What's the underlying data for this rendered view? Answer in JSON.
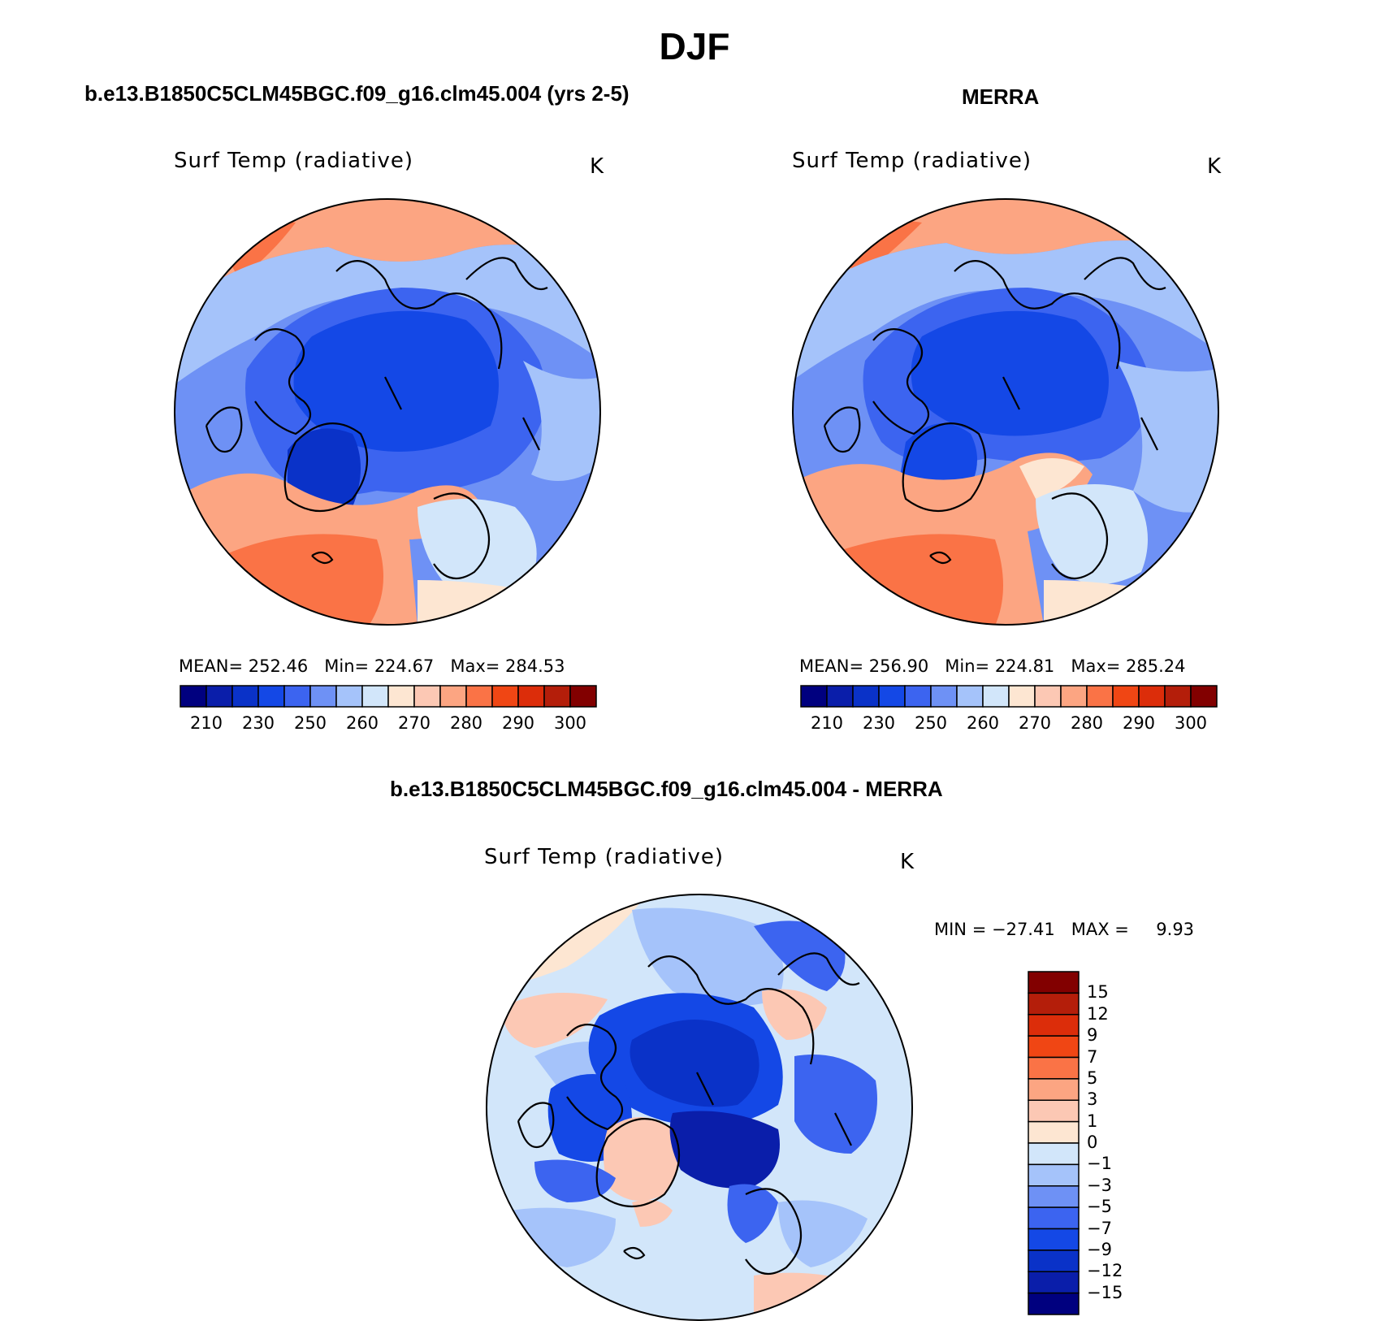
{
  "title": "DJF",
  "panels": {
    "model": {
      "title": "b.e13.B1850C5CLM45BGC.f09_g16.clm45.004 (yrs 2-5)",
      "variable": "Surf Temp (radiative)",
      "units": "K",
      "stats": {
        "mean_label": "MEAN=",
        "mean": "252.46",
        "min_label": "Min=",
        "min": "224.67",
        "max_label": "Max=",
        "max": "284.53"
      },
      "mean_value": 252.46
    },
    "obs": {
      "title": "MERRA",
      "variable": "Surf Temp (radiative)",
      "units": "K",
      "stats": {
        "mean_label": "MEAN=",
        "mean": "256.90",
        "min_label": "Min=",
        "min": "224.81",
        "max_label": "Max=",
        "max": "285.24"
      },
      "mean_value": 256.9
    },
    "diff": {
      "title": "b.e13.B1850C5CLM45BGC.f09_g16.clm45.004 - MERRA",
      "variable": "Surf Temp (radiative)",
      "units": "K",
      "stats": {
        "min_label": "MIN =",
        "min": "−27.41",
        "max_label": "MAX =",
        "max": "9.93"
      }
    }
  },
  "colorbars": {
    "absolute": {
      "colors": [
        "#00007f",
        "#0a1eaa",
        "#0a32c8",
        "#1448e6",
        "#3c64f0",
        "#6e91f5",
        "#a5c3fa",
        "#d2e6fa",
        "#fde6d2",
        "#fcc8b4",
        "#fca582",
        "#fa7346",
        "#f04614",
        "#dc2d0a",
        "#b41e0a",
        "#820000"
      ],
      "tick_labels": [
        "210",
        "230",
        "250",
        "260",
        "270",
        "280",
        "290",
        "300"
      ]
    },
    "difference": {
      "colors": [
        "#00007f",
        "#0a1eaa",
        "#0a32c8",
        "#1448e6",
        "#3c64f0",
        "#6e91f5",
        "#a5c3fa",
        "#d2e6fa",
        "#fde6d2",
        "#fcc8b4",
        "#fca582",
        "#fa7346",
        "#f04614",
        "#dc2d0a",
        "#b41e0a",
        "#820000"
      ],
      "tick_labels": [
        "15",
        "12",
        "9",
        "7",
        "5",
        "3",
        "1",
        "0",
        "−1",
        "−3",
        "−5",
        "−7",
        "−9",
        "−12",
        "−15"
      ]
    }
  }
}
